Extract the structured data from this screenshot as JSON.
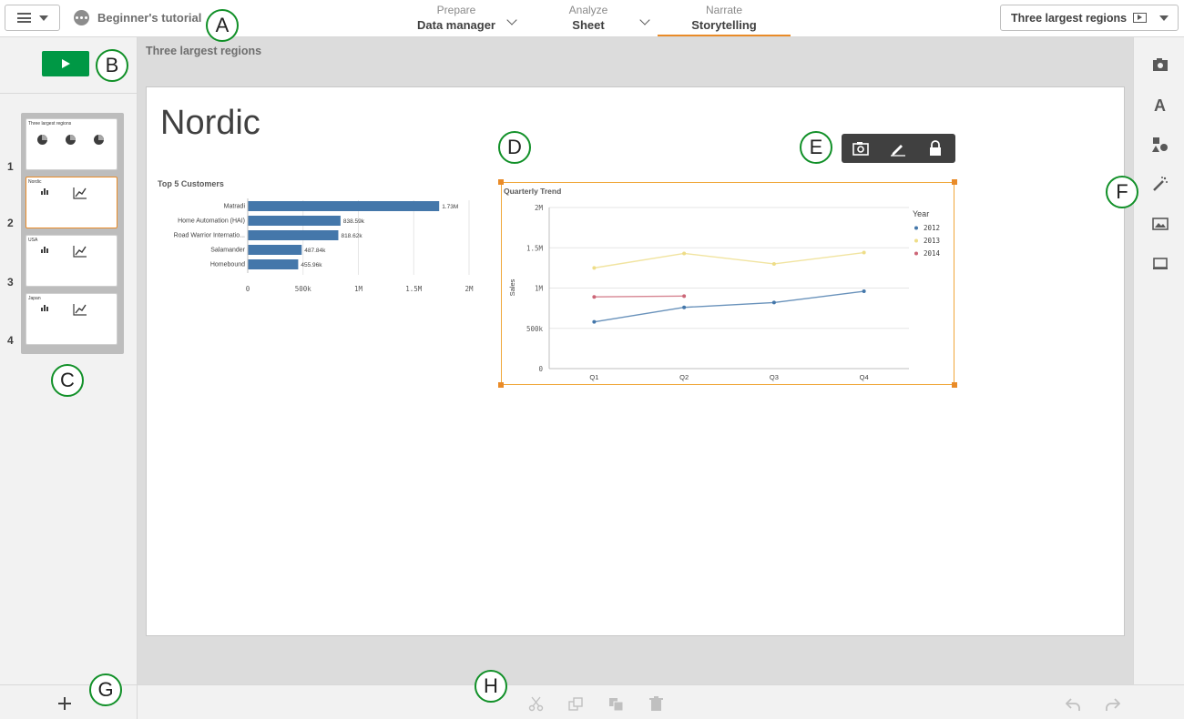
{
  "topbar": {
    "app_title": "Beginner's tutorial",
    "tabs": [
      {
        "small": "Prepare",
        "big": "Data manager"
      },
      {
        "small": "Analyze",
        "big": "Sheet"
      },
      {
        "small": "Narrate",
        "big": "Storytelling"
      }
    ],
    "sheet_button": "Three largest regions",
    "icons": [
      "hamburger-icon",
      "chevron-down-icon",
      "app-icon",
      "present-icon"
    ]
  },
  "story": {
    "title": "Three largest regions"
  },
  "slides": [
    {
      "number": "1",
      "title": "Three largest regions"
    },
    {
      "number": "2",
      "title": "Nordic"
    },
    {
      "number": "3",
      "title": "USA"
    },
    {
      "number": "4",
      "title": "Japan"
    }
  ],
  "slide": {
    "heading": "Nordic"
  },
  "bar_chart": {
    "title": "Top 5 Customers",
    "categories": [
      "Matradi",
      "Home Automation (HAI)",
      "Road Warrior Internatio...",
      "Salamander",
      "Homebound"
    ],
    "values": [
      1730000,
      838590,
      818620,
      487840,
      455960
    ],
    "value_labels": [
      "1.73M",
      "838.59k",
      "818.62k",
      "487.84k",
      "455.96k"
    ],
    "ticks": [
      "0",
      "500k",
      "1M",
      "1.5M",
      "2M"
    ]
  },
  "chart_data": {
    "type": "line",
    "title": "Quarterly Trend",
    "x": [
      "Q1",
      "Q2",
      "Q3",
      "Q4"
    ],
    "ylabel": "Sales",
    "yticks": [
      "0",
      "500k",
      "1M",
      "1.5M",
      "2M"
    ],
    "ylim": [
      0,
      2000000
    ],
    "legend_title": "Year",
    "legend_position": "right",
    "grid": true,
    "series": [
      {
        "name": "2012",
        "color": "#4477aa",
        "values": [
          580000,
          760000,
          820000,
          960000
        ]
      },
      {
        "name": "2013",
        "color": "#eedd88",
        "values": [
          1250000,
          1430000,
          1300000,
          1440000
        ]
      },
      {
        "name": "2014",
        "color": "#cc6677",
        "values": [
          890000,
          900000,
          null,
          null
        ]
      }
    ]
  },
  "colors": {
    "accent": "#e98b28",
    "play": "#009845",
    "bar": "#4477aa",
    "callout_border": "#119028"
  },
  "callouts": {
    "a": "A",
    "b": "B",
    "c": "C",
    "d": "D",
    "e": "E",
    "f": "F",
    "g": "G",
    "h": "H"
  }
}
